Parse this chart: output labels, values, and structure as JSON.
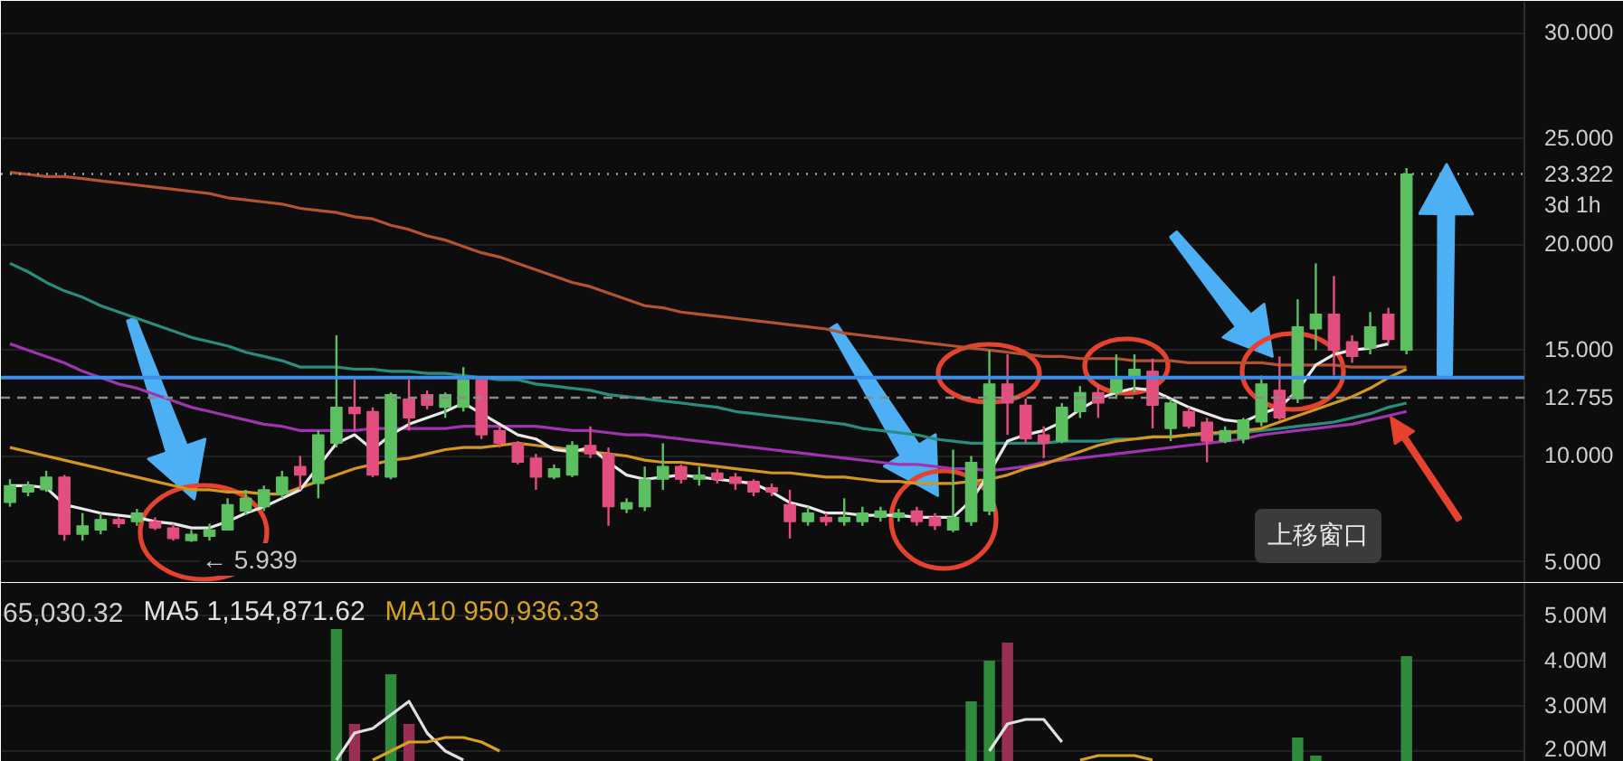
{
  "chart_data": [
    {
      "type": "candlestick",
      "categories": [
        null,
        null,
        null,
        null,
        null,
        null,
        null,
        null,
        null,
        null,
        null,
        null,
        null,
        null,
        null,
        null,
        null,
        null,
        null,
        null,
        null,
        null,
        null,
        null,
        null,
        null,
        null,
        null,
        null,
        null,
        null,
        null,
        null,
        null,
        null,
        null,
        null,
        null,
        null,
        null,
        null,
        null,
        null,
        null,
        null,
        null,
        null,
        null,
        null,
        null,
        null,
        null,
        null,
        null,
        null,
        null,
        null,
        null,
        null,
        null,
        null,
        null,
        null,
        null,
        null,
        null,
        null,
        null,
        null,
        null,
        null,
        null,
        null,
        null,
        null,
        null,
        null,
        null,
        null,
        null,
        null,
        null,
        null,
        null
      ],
      "ohlc": [
        [
          7.8,
          8.9,
          7.6,
          8.6
        ],
        [
          8.3,
          8.8,
          8.1,
          8.6
        ],
        [
          8.4,
          9.3,
          8.3,
          9.0
        ],
        [
          9.0,
          9.1,
          6.0,
          6.3
        ],
        [
          6.3,
          7.3,
          6.0,
          6.7
        ],
        [
          6.5,
          7.3,
          6.3,
          7.0
        ],
        [
          7.0,
          7.1,
          6.6,
          6.8
        ],
        [
          6.9,
          7.5,
          6.7,
          7.3
        ],
        [
          6.9,
          7.1,
          6.5,
          6.6
        ],
        [
          6.6,
          6.8,
          6.0,
          6.1
        ],
        [
          6.0,
          6.5,
          5.939,
          6.3
        ],
        [
          6.2,
          6.8,
          6.0,
          6.5
        ],
        [
          6.5,
          8.0,
          6.5,
          7.7
        ],
        [
          7.4,
          8.4,
          7.2,
          8.0
        ],
        [
          7.6,
          8.6,
          7.4,
          8.4
        ],
        [
          8.2,
          9.3,
          8.0,
          9.0
        ],
        [
          9.5,
          10.0,
          8.4,
          9.1
        ],
        [
          8.7,
          11.2,
          8.0,
          11.0
        ],
        [
          10.6,
          15.7,
          10.4,
          12.3
        ],
        [
          12.3,
          13.6,
          11.2,
          12.0
        ],
        [
          12.1,
          12.3,
          9.0,
          9.1
        ],
        [
          9.0,
          13.0,
          8.9,
          12.9
        ],
        [
          12.7,
          13.6,
          11.2,
          11.8
        ],
        [
          12.9,
          13.1,
          12.2,
          12.4
        ],
        [
          12.3,
          13.0,
          11.8,
          12.9
        ],
        [
          12.3,
          14.2,
          12.1,
          13.6
        ],
        [
          13.6,
          13.7,
          10.8,
          11.0
        ],
        [
          11.2,
          11.4,
          10.4,
          10.6
        ],
        [
          10.6,
          10.7,
          9.6,
          9.7
        ],
        [
          9.9,
          10.1,
          8.4,
          9.0
        ],
        [
          9.0,
          9.6,
          8.9,
          9.4
        ],
        [
          9.1,
          10.7,
          9.0,
          10.5
        ],
        [
          10.5,
          11.4,
          9.9,
          10.1
        ],
        [
          10.1,
          10.4,
          6.7,
          7.6
        ],
        [
          7.5,
          8.0,
          7.3,
          7.8
        ],
        [
          7.6,
          9.5,
          7.4,
          8.9
        ],
        [
          8.9,
          10.6,
          8.4,
          9.5
        ],
        [
          9.5,
          9.6,
          8.7,
          8.9
        ],
        [
          8.9,
          9.5,
          8.6,
          9.1
        ],
        [
          9.2,
          9.4,
          8.7,
          8.9
        ],
        [
          9.0,
          9.2,
          8.4,
          8.7
        ],
        [
          8.8,
          8.9,
          8.1,
          8.3
        ],
        [
          8.5,
          8.7,
          8.1,
          8.3
        ],
        [
          7.7,
          8.4,
          6.1,
          6.9
        ],
        [
          6.9,
          7.6,
          6.7,
          7.3
        ],
        [
          7.1,
          7.3,
          6.7,
          6.9
        ],
        [
          6.9,
          8.0,
          6.7,
          7.1
        ],
        [
          6.9,
          7.6,
          6.7,
          7.3
        ],
        [
          7.1,
          7.6,
          6.9,
          7.4
        ],
        [
          7.1,
          7.5,
          6.9,
          7.3
        ],
        [
          7.4,
          7.6,
          6.7,
          6.9
        ],
        [
          7.1,
          7.3,
          6.5,
          6.7
        ],
        [
          6.5,
          10.3,
          6.4,
          7.1
        ],
        [
          6.9,
          10.0,
          6.7,
          9.7
        ],
        [
          7.4,
          15.0,
          7.2,
          13.4
        ],
        [
          13.4,
          14.8,
          11.0,
          12.5
        ],
        [
          12.4,
          12.7,
          10.6,
          10.8
        ],
        [
          11.0,
          11.4,
          9.9,
          10.6
        ],
        [
          10.7,
          12.5,
          10.6,
          12.3
        ],
        [
          12.1,
          13.3,
          11.8,
          13.0
        ],
        [
          13.0,
          13.4,
          11.8,
          12.5
        ],
        [
          13.0,
          14.8,
          12.7,
          13.7
        ],
        [
          13.7,
          14.8,
          13.0,
          14.1
        ],
        [
          14.0,
          14.6,
          11.3,
          12.4
        ],
        [
          11.3,
          12.7,
          10.7,
          12.5
        ],
        [
          12.1,
          12.3,
          11.3,
          11.4
        ],
        [
          11.6,
          11.8,
          9.7,
          10.7
        ],
        [
          10.7,
          11.4,
          10.6,
          11.2
        ],
        [
          10.8,
          11.8,
          10.6,
          11.7
        ],
        [
          11.6,
          13.8,
          11.4,
          13.4
        ],
        [
          13.1,
          14.7,
          11.7,
          11.8
        ],
        [
          12.7,
          17.4,
          12.5,
          16.1
        ],
        [
          16.0,
          19.1,
          15.0,
          16.7
        ],
        [
          16.7,
          18.5,
          13.8,
          15.0
        ],
        [
          15.4,
          15.7,
          14.4,
          14.7
        ],
        [
          15.1,
          16.8,
          14.8,
          16.1
        ],
        [
          16.7,
          17.0,
          15.3,
          15.5
        ],
        [
          15.0,
          23.6,
          14.8,
          23.322
        ],
        null,
        null,
        null,
        null,
        null,
        null
      ],
      "colors": [
        "#5cbf60",
        "#5cbf60",
        "#5cbf60",
        "#e24f7f",
        "#5cbf60",
        "#5cbf60",
        "#e24f7f",
        "#5cbf60",
        "#e24f7f",
        "#e24f7f",
        "#5cbf60",
        "#5cbf60",
        "#5cbf60",
        "#5cbf60",
        "#5cbf60",
        "#5cbf60",
        "#e24f7f",
        "#5cbf60",
        "#5cbf60",
        "#e24f7f",
        "#e24f7f",
        "#5cbf60",
        "#e24f7f",
        "#e24f7f",
        "#5cbf60",
        "#5cbf60",
        "#e24f7f",
        "#e24f7f",
        "#e24f7f",
        "#e24f7f",
        "#5cbf60",
        "#5cbf60",
        "#e24f7f",
        "#e24f7f",
        "#5cbf60",
        "#5cbf60",
        "#5cbf60",
        "#e24f7f",
        "#5cbf60",
        "#e24f7f",
        "#e24f7f",
        "#e24f7f",
        "#e24f7f",
        "#e24f7f",
        "#5cbf60",
        "#e24f7f",
        "#5cbf60",
        "#5cbf60",
        "#5cbf60",
        "#5cbf60",
        "#e24f7f",
        "#e24f7f",
        "#5cbf60",
        "#5cbf60",
        "#5cbf60",
        "#e24f7f",
        "#e24f7f",
        "#e24f7f",
        "#5cbf60",
        "#5cbf60",
        "#e24f7f",
        "#5cbf60",
        "#5cbf60",
        "#e24f7f",
        "#5cbf60",
        "#e24f7f",
        "#e24f7f",
        "#5cbf60",
        "#5cbf60",
        "#5cbf60",
        "#e24f7f",
        "#5cbf60",
        "#5cbf60",
        "#e24f7f",
        "#e24f7f",
        "#5cbf60",
        "#e24f7f",
        "#5cbf60",
        null,
        null,
        null,
        null,
        null,
        null
      ],
      "series": [
        {
          "type": "line",
          "color": "#b4532f",
          "values": [
            23.4,
            23.3,
            23.2,
            23.2,
            23.1,
            23.0,
            22.9,
            22.8,
            22.7,
            22.6,
            22.5,
            22.4,
            22.2,
            22.1,
            22.0,
            21.9,
            21.7,
            21.6,
            21.5,
            21.3,
            21.2,
            20.9,
            20.7,
            20.4,
            20.2,
            19.9,
            19.6,
            19.4,
            19.1,
            18.8,
            18.5,
            18.2,
            18.0,
            17.7,
            17.4,
            17.1,
            17.0,
            16.8,
            16.7,
            16.6,
            16.5,
            16.4,
            16.3,
            16.2,
            16.1,
            16.0,
            15.8,
            15.7,
            15.6,
            15.5,
            15.4,
            15.3,
            15.2,
            15.1,
            15.0,
            14.9,
            14.8,
            14.7,
            14.7,
            14.6,
            14.6,
            14.6,
            14.5,
            14.5,
            14.5,
            14.4,
            14.4,
            14.4,
            14.4,
            14.4,
            14.3,
            14.3,
            14.3,
            14.3,
            14.2,
            14.2,
            14.2,
            14.2,
            null,
            null,
            null,
            null,
            null,
            null
          ]
        },
        {
          "type": "line",
          "color": "#2a8c7c",
          "values": [
            19.1,
            18.7,
            18.2,
            17.8,
            17.5,
            17.1,
            16.8,
            16.5,
            16.2,
            15.9,
            15.6,
            15.4,
            15.2,
            14.9,
            14.7,
            14.5,
            14.2,
            14.2,
            14.2,
            14.1,
            14.1,
            14.0,
            14.0,
            13.9,
            13.9,
            13.8,
            13.7,
            13.6,
            13.6,
            13.4,
            13.3,
            13.2,
            13.1,
            12.9,
            12.8,
            12.7,
            12.6,
            12.5,
            12.4,
            12.3,
            12.1,
            12.0,
            11.9,
            11.8,
            11.7,
            11.6,
            11.5,
            11.3,
            11.2,
            11.1,
            11.0,
            10.8,
            10.7,
            10.6,
            10.6,
            10.6,
            10.6,
            10.6,
            10.7,
            10.7,
            10.7,
            10.8,
            10.8,
            10.9,
            10.9,
            11.0,
            11.0,
            11.1,
            11.1,
            11.2,
            11.3,
            11.4,
            11.5,
            11.6,
            11.8,
            12.0,
            12.3,
            12.5,
            null,
            null,
            null,
            null,
            null,
            null
          ]
        },
        {
          "type": "line",
          "color": "#a033b0",
          "values": [
            15.3,
            15.0,
            14.7,
            14.4,
            14.0,
            13.7,
            13.4,
            13.2,
            12.9,
            12.6,
            12.3,
            12.1,
            11.9,
            11.7,
            11.5,
            11.4,
            11.2,
            11.2,
            11.2,
            11.2,
            11.3,
            11.3,
            11.3,
            11.3,
            11.3,
            11.4,
            11.4,
            11.4,
            11.4,
            11.4,
            11.3,
            11.2,
            11.2,
            11.1,
            11.0,
            11.0,
            10.9,
            10.8,
            10.7,
            10.6,
            10.5,
            10.4,
            10.3,
            10.2,
            10.1,
            10.0,
            9.9,
            9.8,
            9.7,
            9.6,
            9.6,
            9.5,
            9.4,
            9.4,
            9.3,
            9.4,
            9.5,
            9.7,
            9.8,
            9.9,
            10.0,
            10.1,
            10.2,
            10.3,
            10.4,
            10.5,
            10.6,
            10.7,
            10.8,
            11.0,
            11.1,
            11.2,
            11.3,
            11.4,
            11.5,
            11.7,
            11.9,
            12.1,
            null,
            null,
            null,
            null,
            null,
            null
          ]
        },
        {
          "type": "line",
          "color": "#d4961c",
          "values": [
            10.4,
            10.2,
            10.0,
            9.8,
            9.6,
            9.4,
            9.2,
            9.0,
            8.8,
            8.6,
            8.4,
            8.4,
            8.3,
            8.3,
            8.2,
            8.2,
            8.5,
            8.8,
            9.1,
            9.4,
            9.6,
            9.8,
            9.9,
            10.1,
            10.3,
            10.4,
            10.4,
            10.5,
            10.6,
            10.5,
            10.4,
            10.3,
            10.2,
            10.1,
            10.0,
            9.8,
            9.7,
            9.7,
            9.6,
            9.5,
            9.4,
            9.3,
            9.2,
            9.2,
            9.1,
            9.0,
            9.0,
            8.9,
            8.8,
            8.8,
            8.7,
            8.7,
            8.7,
            8.8,
            8.9,
            9.1,
            9.4,
            9.6,
            9.9,
            10.2,
            10.5,
            10.7,
            10.8,
            10.9,
            10.9,
            11.0,
            11.1,
            11.1,
            11.2,
            11.3,
            11.6,
            11.9,
            12.2,
            12.5,
            12.8,
            13.2,
            13.7,
            14.1,
            null,
            null,
            null,
            null,
            null,
            null
          ]
        },
        {
          "type": "line",
          "color": "#e8e8e8",
          "values": [
            8.6,
            8.6,
            8.5,
            7.7,
            7.5,
            7.3,
            7.2,
            7.1,
            6.9,
            6.8,
            6.6,
            6.6,
            6.9,
            7.3,
            7.6,
            8.0,
            8.4,
            9.5,
            10.6,
            11.0,
            10.3,
            11.0,
            11.5,
            11.8,
            12.1,
            12.5,
            12.0,
            11.5,
            11.0,
            10.8,
            10.3,
            10.2,
            10.4,
            9.7,
            9.1,
            8.9,
            9.0,
            9.1,
            9.0,
            8.9,
            8.8,
            8.7,
            8.3,
            7.8,
            7.6,
            7.3,
            7.3,
            7.2,
            7.2,
            7.2,
            7.1,
            7.1,
            7.1,
            7.9,
            9.2,
            10.7,
            11.0,
            11.2,
            11.6,
            12.2,
            12.7,
            13.0,
            13.2,
            13.1,
            12.7,
            12.3,
            12.0,
            11.7,
            11.6,
            12.0,
            12.3,
            13.1,
            14.3,
            14.8,
            15.0,
            15.1,
            15.3,
            null,
            null,
            null,
            null,
            null,
            null,
            null
          ]
        }
      ],
      "ylim": [
        4.0,
        31.5
      ],
      "yticks": [
        {
          "value": 5,
          "label": "5.000"
        },
        {
          "value": 10,
          "label": "10.000"
        },
        {
          "value": 15,
          "label": "15.000"
        },
        {
          "value": 20,
          "label": "20.000"
        },
        {
          "value": 25,
          "label": "25.000"
        },
        {
          "value": 30,
          "label": "30.000"
        }
      ],
      "tick_labels": "y",
      "grid": "y",
      "ref_lines": [
        {
          "axis": "y",
          "value": 13.7,
          "color": "#3d8ee8",
          "line_style": "solid"
        },
        {
          "axis": "y",
          "value": 23.322,
          "label": "23.322",
          "color": "#a0a0a0",
          "line_style": "dotted"
        },
        {
          "axis": "y",
          "value": 12.755,
          "label": "12.755",
          "color": "#8a8a8a",
          "line_style": "dashed"
        }
      ],
      "annotations": [
        "← 5.939",
        "3d 1h",
        "上移窗口"
      ]
    },
    {
      "type": "bar",
      "categories": [
        null,
        null,
        null,
        null,
        null,
        null,
        null,
        null,
        null,
        null,
        null,
        null,
        null,
        null,
        null,
        null,
        null,
        null,
        null,
        null,
        null,
        null,
        null,
        null,
        null,
        null,
        null,
        null,
        null,
        null,
        null,
        null,
        null,
        null,
        null,
        null,
        null,
        null,
        null,
        null,
        null,
        null,
        null,
        null,
        null,
        null,
        null,
        null,
        null,
        null,
        null,
        null,
        null,
        null,
        null,
        null,
        null,
        null,
        null,
        null,
        null,
        null,
        null,
        null,
        null,
        null,
        null,
        null,
        null,
        null,
        null,
        null,
        null,
        null,
        null,
        null,
        null,
        null,
        null,
        null,
        null,
        null,
        null,
        null
      ],
      "series": [
        {
          "type": "bar",
          "values": [
            null,
            null,
            null,
            null,
            null,
            null,
            null,
            null,
            null,
            null,
            null,
            null,
            null,
            null,
            null,
            null,
            null,
            null,
            4700000,
            2600000,
            null,
            3700000,
            2600000,
            null,
            null,
            null,
            null,
            null,
            null,
            null,
            null,
            null,
            null,
            null,
            null,
            null,
            null,
            null,
            null,
            null,
            null,
            null,
            null,
            null,
            null,
            null,
            null,
            null,
            null,
            null,
            null,
            null,
            null,
            3100000,
            4000000,
            4400000,
            null,
            null,
            null,
            null,
            null,
            null,
            null,
            null,
            null,
            null,
            null,
            null,
            null,
            null,
            null,
            2300000,
            1900000,
            null,
            null,
            null,
            null,
            4100000,
            null,
            null,
            null,
            null,
            null,
            null
          ],
          "colors": [
            null,
            null,
            null,
            null,
            null,
            null,
            null,
            null,
            null,
            null,
            null,
            null,
            null,
            null,
            null,
            null,
            null,
            null,
            "#2f8a3c",
            "#9a2f56",
            null,
            "#2f8a3c",
            "#9a2f56",
            null,
            null,
            null,
            null,
            null,
            null,
            null,
            null,
            null,
            null,
            null,
            null,
            null,
            null,
            null,
            null,
            null,
            null,
            null,
            null,
            null,
            null,
            null,
            null,
            null,
            null,
            null,
            null,
            null,
            null,
            "#2f8a3c",
            "#2f8a3c",
            "#9a2f56",
            null,
            null,
            null,
            null,
            null,
            null,
            null,
            null,
            null,
            null,
            null,
            null,
            null,
            null,
            null,
            "#2f8a3c",
            "#2f8a3c",
            null,
            null,
            null,
            null,
            "#2f8a3c",
            null,
            null,
            null,
            null,
            null,
            null
          ]
        },
        {
          "type": "line",
          "name": "MA5 1,154,871.62",
          "color": "#e0e0e0",
          "values": [
            null,
            null,
            null,
            null,
            null,
            null,
            null,
            null,
            null,
            null,
            null,
            null,
            null,
            null,
            null,
            null,
            null,
            null,
            1800000,
            2400000,
            2500000,
            2800000,
            3100000,
            2400000,
            2000000,
            1800000,
            null,
            null,
            null,
            null,
            null,
            null,
            null,
            null,
            null,
            null,
            null,
            null,
            null,
            null,
            null,
            null,
            null,
            null,
            null,
            null,
            null,
            null,
            null,
            null,
            null,
            null,
            null,
            null,
            2000000,
            2600000,
            2700000,
            2700000,
            2200000,
            null,
            null,
            null,
            null,
            null,
            null,
            null,
            null,
            null,
            null,
            null,
            null,
            null,
            null,
            null,
            null,
            null,
            null,
            null,
            null,
            null,
            null,
            null,
            null,
            null
          ]
        },
        {
          "type": "line",
          "name": "MA10 950,936.33",
          "color": "#d4a21c",
          "values": [
            null,
            null,
            null,
            null,
            null,
            null,
            null,
            null,
            null,
            null,
            null,
            null,
            null,
            null,
            null,
            null,
            null,
            null,
            null,
            null,
            1800000,
            2000000,
            2200000,
            2200000,
            2300000,
            2300000,
            2200000,
            2000000,
            null,
            null,
            null,
            null,
            null,
            null,
            null,
            null,
            null,
            null,
            null,
            null,
            null,
            null,
            null,
            null,
            null,
            null,
            null,
            null,
            null,
            null,
            null,
            null,
            null,
            null,
            null,
            null,
            null,
            null,
            null,
            1800000,
            1900000,
            1900000,
            1900000,
            1800000,
            null,
            null,
            null,
            null,
            null,
            null,
            null,
            null,
            null,
            null,
            null,
            null,
            null,
            null,
            null,
            null,
            null,
            null,
            null,
            null
          ]
        }
      ],
      "ylim": [
        1760000,
        5720000
      ],
      "yticks": [
        {
          "value": 2000000,
          "label": "2.00M"
        },
        {
          "value": 3000000,
          "label": "3.00M"
        },
        {
          "value": 4000000,
          "label": "4.00M"
        },
        {
          "value": 5000000,
          "label": "5.00M"
        }
      ],
      "tick_labels": "y",
      "grid": "y",
      "legend": "top left",
      "annotations": [
        "65,030.32"
      ]
    }
  ]
}
